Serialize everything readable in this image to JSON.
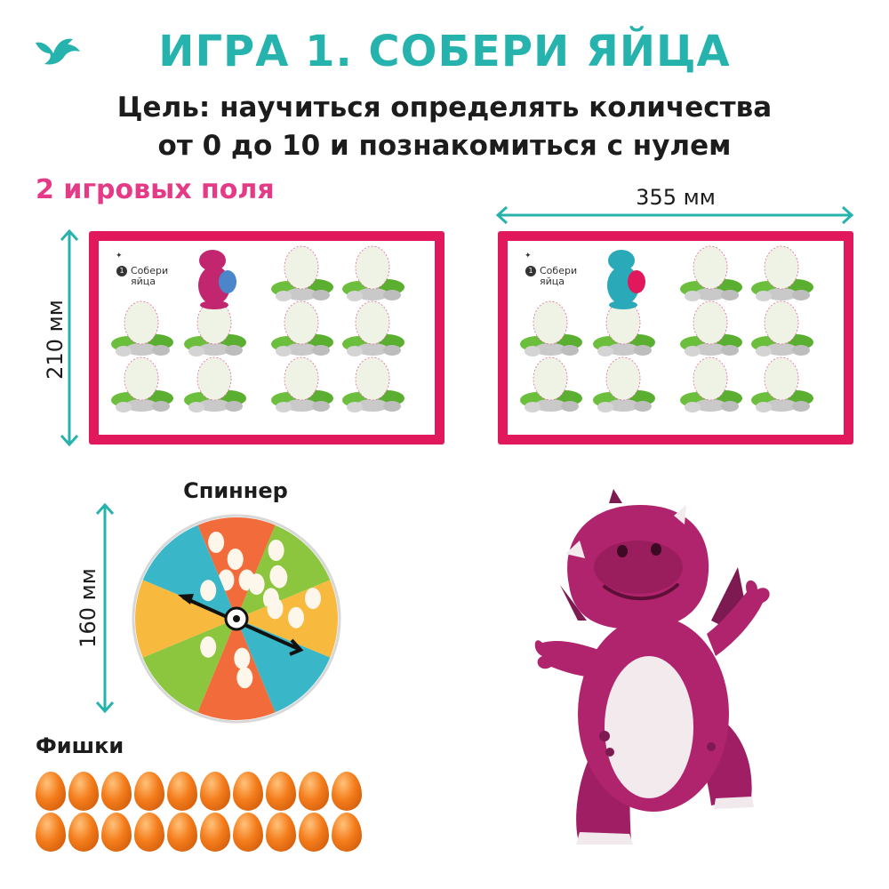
{
  "header": {
    "title": "ИГРА 1. СОБЕРИ ЯЙЦА",
    "goal_line1": "Цель: научиться определять количества",
    "goal_line2": "от 0 до 10 и познакомиться с нулем"
  },
  "fields": {
    "heading": "2 игровых поля",
    "width": "355 мм",
    "height": "210 мм",
    "board_label_line1": "Собери",
    "board_label_line2": "яйца",
    "board_number": "1"
  },
  "spinner": {
    "label": "Спиннер",
    "size": "160 мм"
  },
  "tokens": {
    "label": "Фишки",
    "count": 20
  },
  "colors": {
    "teal": "#27b3ad",
    "pink": "#e53a86",
    "board_border": "#e2185c",
    "dragon": "#b0246e",
    "token_orange": "#f47c1b"
  },
  "icons": [
    "bird-logo-icon",
    "dragon-character"
  ]
}
